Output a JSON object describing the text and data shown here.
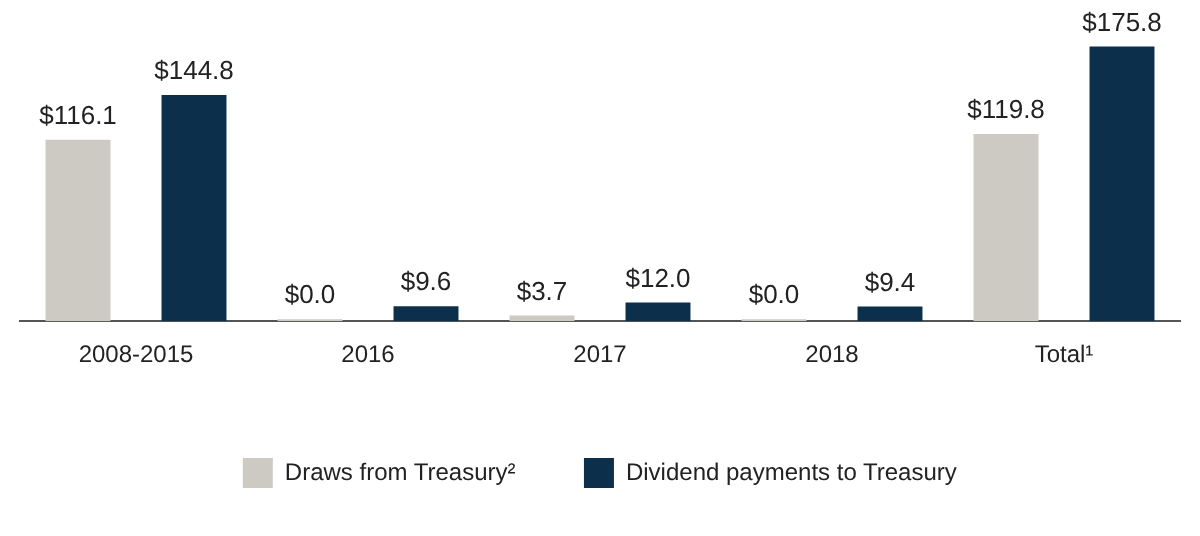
{
  "chart_data": {
    "type": "bar",
    "categories": [
      "2008-2015",
      "2016",
      "2017",
      "2018",
      "Total¹"
    ],
    "series": [
      {
        "name": "Draws from Treasury²",
        "color": "#cdc9c3",
        "values": [
          116.1,
          0.0,
          3.7,
          0.0,
          119.8
        ],
        "value_labels": [
          "$116.1",
          "$0.0",
          "$3.7",
          "$0.0",
          "$119.8"
        ]
      },
      {
        "name": "Dividend payments to Treasury",
        "color": "#0c2f4c",
        "values": [
          144.8,
          9.6,
          12.0,
          9.4,
          175.8
        ],
        "value_labels": [
          "$144.8",
          "$9.6",
          "$12.0",
          "$9.4",
          "$175.8"
        ]
      }
    ],
    "grid": false,
    "legend": "bottom"
  }
}
